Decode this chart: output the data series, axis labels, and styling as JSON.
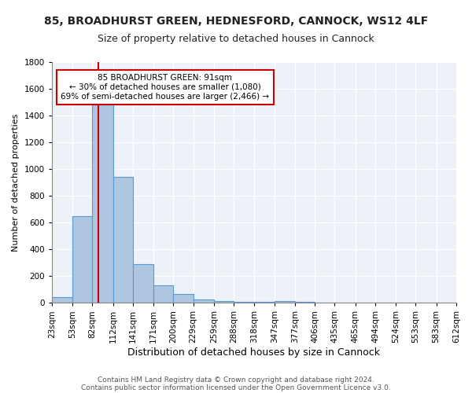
{
  "title1": "85, BROADHURST GREEN, HEDNESFORD, CANNOCK, WS12 4LF",
  "title2": "Size of property relative to detached houses in Cannock",
  "xlabel": "Distribution of detached houses by size in Cannock",
  "ylabel": "Number of detached properties",
  "bin_edges": [
    23,
    53,
    82,
    112,
    141,
    171,
    200,
    229,
    259,
    288,
    318,
    347,
    377,
    406,
    435,
    465,
    494,
    524,
    553,
    583,
    612
  ],
  "bar_heights": [
    40,
    650,
    1480,
    940,
    290,
    130,
    65,
    25,
    15,
    5,
    5,
    15,
    5,
    0,
    0,
    0,
    0,
    0,
    0,
    0
  ],
  "bar_color": "#aec6df",
  "bar_edge_color": "#5b9bd5",
  "bar_edge_width": 0.8,
  "red_line_x": 91,
  "red_line_color": "#cc0000",
  "annotation_text": "85 BROADHURST GREEN: 91sqm\n← 30% of detached houses are smaller (1,080)\n69% of semi-detached houses are larger (2,466) →",
  "annotation_box_color": "#ffffff",
  "annotation_box_edge_color": "#cc0000",
  "ylim": [
    0,
    1800
  ],
  "background_color": "#edf2f9",
  "grid_color": "#ffffff",
  "footnote1": "Contains HM Land Registry data © Crown copyright and database right 2024.",
  "footnote2": "Contains public sector information licensed under the Open Government Licence v3.0.",
  "title1_fontsize": 10,
  "title2_fontsize": 9,
  "xlabel_fontsize": 9,
  "ylabel_fontsize": 8,
  "tick_fontsize": 7.5,
  "footnote_fontsize": 6.5
}
